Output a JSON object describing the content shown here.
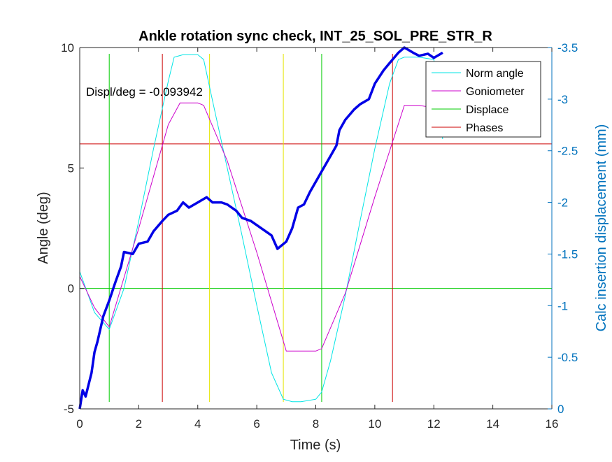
{
  "chart_data": {
    "type": "line",
    "title": "Ankle rotation sync check, INT_25_SOL_PRE_STR_R",
    "xlabel": "Time (s)",
    "ylabel": "Angle (deg)",
    "y2label": "Calc insertion displacement (mm)",
    "xlim": [
      0,
      16
    ],
    "ylim": [
      -5,
      10
    ],
    "y2lim": [
      0,
      -3.5
    ],
    "y2_reversed": true,
    "xticks": [
      "0",
      "2",
      "4",
      "6",
      "8",
      "10",
      "12",
      "14",
      "16"
    ],
    "yticks": [
      "-5",
      "0",
      "5",
      "10"
    ],
    "y2ticks": [
      "0",
      "-0.5",
      "-1",
      "-1.5",
      "-2",
      "-2.5",
      "-3",
      "-3.5"
    ],
    "annotation": "Displ/deg = -0.093942",
    "legend_position": "top-right",
    "legend": [
      "Norm angle",
      "Goniometer",
      "Displace",
      "Phases"
    ],
    "colors": {
      "norm_angle": "#00E5E5",
      "goniometer": "#CC00CC",
      "displace": "#00CC00",
      "phases": "#CC0000",
      "yellow_markers": "#E5E500",
      "displacement_trace": "#0000E6",
      "right_axis": "#0072BD"
    },
    "series": [
      {
        "name": "Norm angle",
        "x": [
          0,
          0.5,
          1.0,
          1.5,
          2.0,
          2.5,
          3.0,
          3.2,
          3.5,
          4.0,
          4.2,
          4.5,
          5.0,
          5.5,
          6.0,
          6.5,
          6.9,
          7.2,
          7.5,
          8.0,
          8.2,
          8.5,
          9.0,
          9.5,
          10.0,
          10.5,
          10.8,
          11.0,
          11.5,
          12.0,
          12.3
        ],
        "y": [
          0.7,
          -1.0,
          -1.7,
          0.0,
          2.8,
          5.8,
          8.6,
          9.6,
          9.7,
          9.7,
          9.5,
          7.8,
          5.0,
          2.2,
          -0.7,
          -3.5,
          -4.6,
          -4.7,
          -4.7,
          -4.6,
          -4.3,
          -3.0,
          -0.3,
          2.8,
          5.8,
          8.5,
          9.5,
          9.6,
          9.6,
          9.5,
          6.2
        ]
      },
      {
        "name": "Goniometer",
        "x": [
          0,
          0.5,
          1.0,
          2.0,
          3.0,
          3.4,
          4.0,
          4.2,
          5.0,
          6.0,
          7.0,
          8.0,
          8.2,
          9.0,
          10.0,
          11.0,
          11.5,
          12.0,
          12.3
        ],
        "y": [
          0.5,
          -0.8,
          -1.6,
          2.5,
          6.8,
          7.7,
          7.7,
          7.6,
          5.3,
          1.5,
          -2.6,
          -2.6,
          -2.5,
          -0.2,
          3.8,
          7.6,
          7.6,
          7.5,
          7.4
        ]
      },
      {
        "name": "Calc insertion displacement",
        "axis": "right",
        "x": [
          0,
          0.1,
          0.2,
          0.4,
          0.5,
          0.6,
          0.8,
          1.0,
          1.2,
          1.4,
          1.5,
          1.8,
          2.0,
          2.3,
          2.5,
          2.8,
          3.0,
          3.3,
          3.5,
          3.7,
          4.0,
          4.3,
          4.5,
          4.8,
          5.0,
          5.3,
          5.5,
          5.8,
          6.0,
          6.3,
          6.5,
          6.7,
          7.0,
          7.2,
          7.4,
          7.6,
          7.8,
          8.0,
          8.2,
          8.5,
          8.7,
          8.8,
          9.0,
          9.3,
          9.5,
          9.8,
          10.0,
          10.3,
          10.5,
          10.8,
          11.0,
          11.3,
          11.5,
          11.8,
          12.0,
          12.3
        ],
        "y": [
          0.0,
          -0.18,
          -0.12,
          -0.35,
          -0.55,
          -0.65,
          -0.9,
          -1.05,
          -1.22,
          -1.38,
          -1.52,
          -1.5,
          -1.6,
          -1.62,
          -1.72,
          -1.82,
          -1.88,
          -1.92,
          -2.0,
          -1.95,
          -2.0,
          -2.05,
          -2.0,
          -2.0,
          -1.98,
          -1.92,
          -1.85,
          -1.82,
          -1.78,
          -1.72,
          -1.68,
          -1.55,
          -1.62,
          -1.75,
          -1.95,
          -1.98,
          -2.1,
          -2.2,
          -2.3,
          -2.45,
          -2.55,
          -2.7,
          -2.8,
          -2.9,
          -2.95,
          -3.0,
          -3.15,
          -3.28,
          -3.35,
          -3.45,
          -3.5,
          -3.45,
          -3.42,
          -3.44,
          -3.4,
          -3.45
        ]
      }
    ],
    "vertical_lines": [
      {
        "x": 1.0,
        "color": "displace"
      },
      {
        "x": 2.8,
        "color": "phases"
      },
      {
        "x": 4.4,
        "color": "yellow_markers"
      },
      {
        "x": 6.9,
        "color": "yellow_markers"
      },
      {
        "x": 8.2,
        "color": "displace"
      },
      {
        "x": 10.6,
        "color": "phases"
      }
    ],
    "horizontal_lines": [
      {
        "y": 0,
        "color": "displace"
      },
      {
        "y": 6,
        "color": "phases"
      }
    ]
  }
}
